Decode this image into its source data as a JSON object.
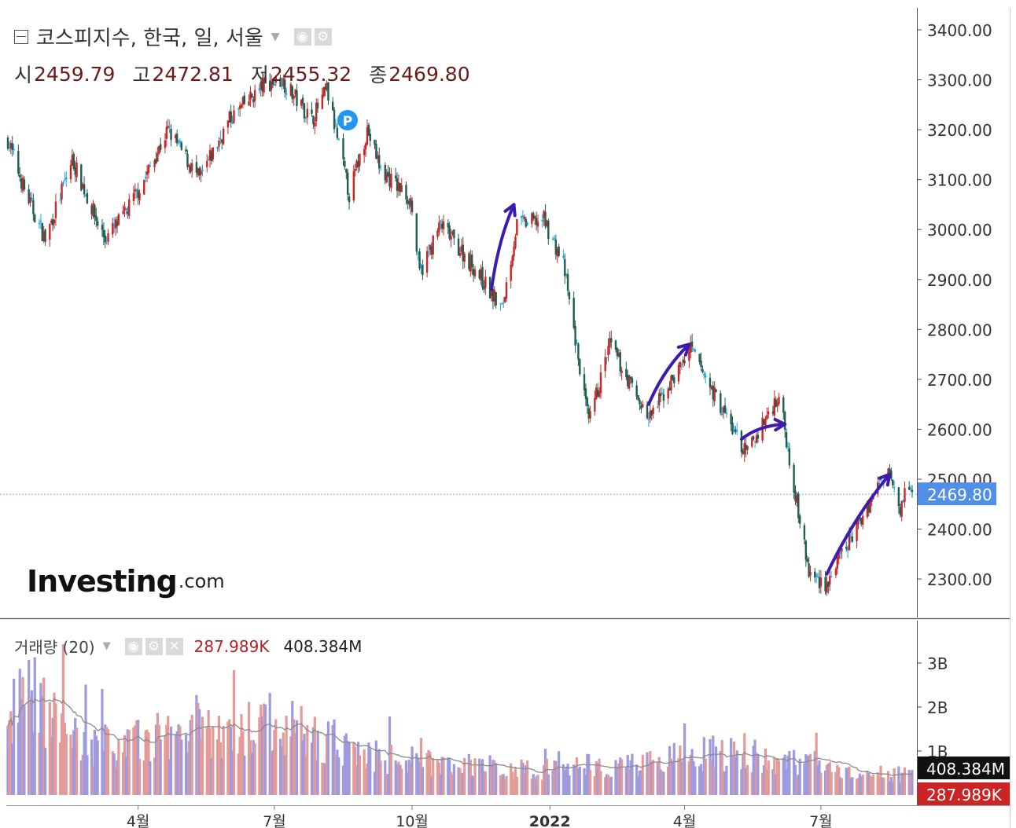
{
  "header": {
    "title": "코스피지수, 한국, 일, 서울",
    "ohlc": [
      {
        "label": "시",
        "value": "2459.79"
      },
      {
        "label": "고",
        "value": "2472.81"
      },
      {
        "label": "저",
        "value": "2455.32"
      },
      {
        "label": "종",
        "value": "2469.80"
      }
    ],
    "eye_icon": "eye-icon",
    "gear_icon": "gear-icon",
    "close_icon": "close-icon"
  },
  "volume_header": {
    "label": "거래량 (20)",
    "value1": "287.989K",
    "value2": "408.384M"
  },
  "logo": {
    "main": "Investing",
    "domain": ".com"
  },
  "markers": {
    "p_marker": "P"
  },
  "colors": {
    "up": "#c62828",
    "down": "#1f5c52",
    "flat": "#1aa6e0",
    "vol_up": "#e49a97",
    "vol_down": "#9e9ae0",
    "annotation": "#3d1bb0",
    "price_label_bg": "#4f8fe8",
    "vol_label_bg1": "#111111",
    "vol_label_bg2": "#cc2424"
  },
  "chart_data": [
    {
      "type": "candlestick",
      "title": "코스피지수, 한국, 일, 서울",
      "yticks": [
        "3400.00",
        "3300.00",
        "3200.00",
        "3100.00",
        "3000.00",
        "2900.00",
        "2800.00",
        "2700.00",
        "2600.00",
        "2500.00",
        "2400.00",
        "2300.00"
      ],
      "ylim": [
        2200,
        3470
      ],
      "last_price_label": "2469.80",
      "last_price": 2469.8,
      "xticks": [
        "4월",
        "7월",
        "10월",
        "2022",
        "4월",
        "7월"
      ],
      "xtick_dates": [
        "2021-04-01",
        "2021-07-01",
        "2021-10-01",
        "2022-01-01",
        "2022-04-01",
        "2022-07-01"
      ],
      "x_range": [
        "2021-01-04",
        "2022-08-31"
      ],
      "grid": false,
      "anchor_closes": [
        {
          "date": "2021-01-04",
          "close": 3180
        },
        {
          "date": "2021-01-15",
          "close": 3080
        },
        {
          "date": "2021-01-29",
          "close": 2980
        },
        {
          "date": "2021-02-16",
          "close": 3140
        },
        {
          "date": "2021-03-04",
          "close": 3020
        },
        {
          "date": "2021-03-10",
          "close": 2980
        },
        {
          "date": "2021-03-23",
          "close": 3030
        },
        {
          "date": "2021-04-05",
          "close": 3100
        },
        {
          "date": "2021-04-21",
          "close": 3200
        },
        {
          "date": "2021-05-12",
          "close": 3100
        },
        {
          "date": "2021-06-01",
          "close": 3220
        },
        {
          "date": "2021-06-24",
          "close": 3290
        },
        {
          "date": "2021-07-06",
          "close": 3300
        },
        {
          "date": "2021-07-26",
          "close": 3220
        },
        {
          "date": "2021-08-05",
          "close": 3280
        },
        {
          "date": "2021-08-20",
          "close": 3070
        },
        {
          "date": "2021-09-01",
          "close": 3200
        },
        {
          "date": "2021-09-10",
          "close": 3120
        },
        {
          "date": "2021-09-30",
          "close": 3060
        },
        {
          "date": "2021-10-06",
          "close": 2910
        },
        {
          "date": "2021-10-20",
          "close": 3010
        },
        {
          "date": "2021-11-10",
          "close": 2930
        },
        {
          "date": "2021-11-30",
          "close": 2840
        },
        {
          "date": "2021-12-10",
          "close": 3010
        },
        {
          "date": "2021-12-28",
          "close": 3020
        },
        {
          "date": "2022-01-10",
          "close": 2930
        },
        {
          "date": "2022-01-27",
          "close": 2610
        },
        {
          "date": "2022-02-10",
          "close": 2770
        },
        {
          "date": "2022-03-08",
          "close": 2620
        },
        {
          "date": "2022-04-05",
          "close": 2760
        },
        {
          "date": "2022-05-12",
          "close": 2550
        },
        {
          "date": "2022-06-03",
          "close": 2670
        },
        {
          "date": "2022-06-23",
          "close": 2310
        },
        {
          "date": "2022-07-05",
          "close": 2290
        },
        {
          "date": "2022-08-16",
          "close": 2530
        },
        {
          "date": "2022-08-23",
          "close": 2440
        },
        {
          "date": "2022-08-26",
          "close": 2481
        },
        {
          "date": "2022-08-31",
          "close": 2469.8
        }
      ]
    },
    {
      "type": "bar",
      "title": "거래량 (20)",
      "yticks": [
        "3B",
        "2B",
        "1B"
      ],
      "ylim": [
        0,
        3.5
      ],
      "unit": "B",
      "moving_average_period": 20,
      "last_labels": [
        "408.384M",
        "287.989K"
      ],
      "volume_anchors": [
        {
          "date": "2021-01-04",
          "volume": 1.3
        },
        {
          "date": "2021-01-11",
          "volume": 2.4
        },
        {
          "date": "2021-01-25",
          "volume": 2.1
        },
        {
          "date": "2021-02-15",
          "volume": 1.3
        },
        {
          "date": "2021-03-15",
          "volume": 1.1
        },
        {
          "date": "2021-04-15",
          "volume": 1.3
        },
        {
          "date": "2021-05-10",
          "volume": 1.6
        },
        {
          "date": "2021-06-01",
          "volume": 1.2
        },
        {
          "date": "2021-06-20",
          "volume": 1.7
        },
        {
          "date": "2021-07-05",
          "volume": 1.6
        },
        {
          "date": "2021-08-15",
          "volume": 1.1
        },
        {
          "date": "2021-09-15",
          "volume": 0.8
        },
        {
          "date": "2021-10-15",
          "volume": 0.75
        },
        {
          "date": "2021-11-15",
          "volume": 0.65
        },
        {
          "date": "2021-12-20",
          "volume": 0.55
        },
        {
          "date": "2022-01-27",
          "volume": 0.7
        },
        {
          "date": "2022-03-15",
          "volume": 0.7
        },
        {
          "date": "2022-04-01",
          "volume": 0.95
        },
        {
          "date": "2022-05-01",
          "volume": 0.95
        },
        {
          "date": "2022-06-15",
          "volume": 0.75
        },
        {
          "date": "2022-07-20",
          "volume": 0.45
        },
        {
          "date": "2022-08-31",
          "volume": 0.45
        }
      ]
    }
  ]
}
